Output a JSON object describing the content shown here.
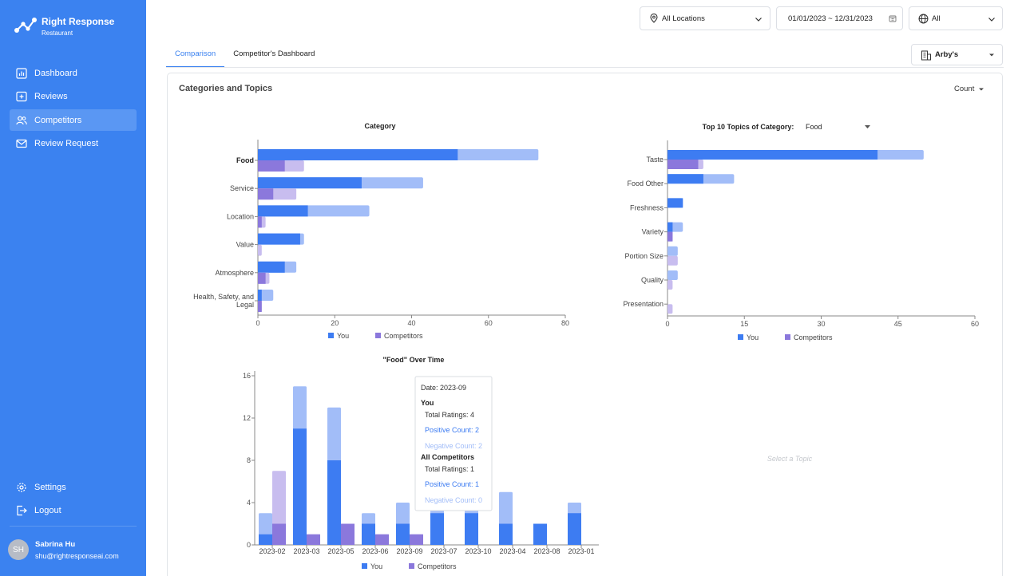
{
  "brand": {
    "name": "Right Response",
    "sub": "Restaurant"
  },
  "nav": [
    {
      "label": "Dashboard",
      "icon": "dashboard-icon",
      "active": false
    },
    {
      "label": "Reviews",
      "icon": "reviews-icon",
      "active": false
    },
    {
      "label": "Competitors",
      "icon": "competitors-icon",
      "active": true
    },
    {
      "label": "Review Request",
      "icon": "review-request-icon",
      "active": false
    }
  ],
  "nav_bottom": [
    {
      "label": "Settings",
      "icon": "gear-icon"
    },
    {
      "label": "Logout",
      "icon": "logout-icon"
    }
  ],
  "user": {
    "initials": "SH",
    "name": "Sabrina Hu",
    "email": "shu@rightresponseai.com"
  },
  "filters": {
    "location": "All Locations",
    "date_range": "01/01/2023 ~ 12/31/2023",
    "language": "All"
  },
  "tabs": [
    {
      "label": "Comparison",
      "active": true
    },
    {
      "label": "Competitor's Dashboard",
      "active": false
    }
  ],
  "competitor_select": "Arby's",
  "panel": {
    "title": "Categories and Topics",
    "metric": "Count"
  },
  "colors": {
    "sidebar": "#3b82f0",
    "you": "#3d7cf2",
    "you_light": "#a2bdf8",
    "competitors": "#8b78dc",
    "competitors_light": "#c8bdef"
  },
  "chart_data": [
    {
      "type": "bar",
      "orientation": "horizontal",
      "title": "Category",
      "categories": [
        "Food",
        "Service",
        "Location",
        "Value",
        "Atmosphere",
        "Health, Safety, and Legal"
      ],
      "highlight": "Food",
      "series": [
        {
          "name": "You",
          "positive": [
            52,
            27,
            13,
            11,
            7,
            1
          ],
          "total": [
            73,
            43,
            29,
            12,
            10,
            4
          ]
        },
        {
          "name": "Competitors",
          "positive": [
            7,
            4,
            1,
            0,
            2,
            1
          ],
          "total": [
            12,
            10,
            2,
            1,
            3,
            1
          ]
        }
      ],
      "xlim": [
        0,
        80
      ],
      "xticks": [
        "0",
        "20",
        "40",
        "60",
        "80"
      ],
      "legend": [
        "You",
        "Competitors"
      ]
    },
    {
      "type": "bar",
      "orientation": "horizontal",
      "title": "Top 10 Topics of Category:",
      "category_select": "Food",
      "categories": [
        "Taste",
        "Food Other",
        "Freshness",
        "Variety",
        "Portion Size",
        "Quality",
        "Presentation"
      ],
      "series": [
        {
          "name": "You",
          "positive": [
            41,
            7,
            3,
            1,
            0,
            0,
            0
          ],
          "total": [
            50,
            13,
            3,
            3,
            2,
            2,
            0
          ]
        },
        {
          "name": "Competitors",
          "positive": [
            6,
            0,
            0,
            1,
            0,
            0,
            0
          ],
          "total": [
            7,
            0,
            0,
            1,
            2,
            1,
            1
          ]
        }
      ],
      "xlim": [
        0,
        60
      ],
      "xticks": [
        "0",
        "15",
        "30",
        "45",
        "60"
      ],
      "legend": [
        "You",
        "Competitors"
      ]
    },
    {
      "type": "bar",
      "orientation": "vertical",
      "title": "\"Food\" Over Time",
      "categories": [
        "2023-02",
        "2023-03",
        "2023-05",
        "2023-06",
        "2023-09",
        "2023-07",
        "2023-10",
        "2023-04",
        "2023-08",
        "2023-01"
      ],
      "series": [
        {
          "name": "You",
          "positive": [
            1,
            11,
            8,
            2,
            2,
            3,
            3,
            2,
            2,
            3
          ],
          "total": [
            3,
            15,
            13,
            3,
            4,
            4,
            4,
            5,
            2,
            4
          ]
        },
        {
          "name": "Competitors",
          "positive": [
            2,
            1,
            2,
            1,
            1,
            0,
            0,
            0,
            0,
            0
          ],
          "total": [
            7,
            1,
            2,
            1,
            1,
            0,
            0,
            0,
            0,
            0
          ]
        }
      ],
      "ylim": [
        0,
        16
      ],
      "yticks": [
        "0",
        "4",
        "8",
        "12",
        "16"
      ],
      "legend": [
        "You",
        "Competitors"
      ],
      "tooltip": {
        "date": "Date: 2023-09",
        "you_title": "You",
        "you_total": "Total Ratings: 4",
        "you_positive": "Positive Count: 2",
        "you_negative": "Negative Count: 2",
        "comp_title": "All Competitors",
        "comp_total": "Total Ratings: 1",
        "comp_positive": "Positive Count: 1",
        "comp_negative": "Negative Count: 0"
      }
    }
  ],
  "empty_state": "Select a Topic"
}
